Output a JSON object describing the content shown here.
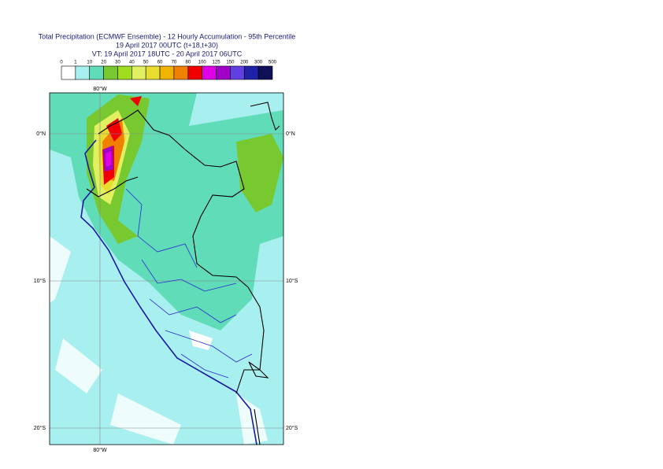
{
  "header": {
    "lines": [
      "Total Precipitation (ECMWF Ensemble) - 12 Hourly Accumulation - 95th Percentile",
      "19 April 2017 00UTC (t+18,t+30)",
      "VT: 19 April 2017 18UTC - 20 April 2017 06UTC"
    ]
  },
  "legend": {
    "labels": [
      "0",
      "1",
      "10",
      "20",
      "30",
      "40",
      "50",
      "60",
      "70",
      "80",
      "100",
      "125",
      "150",
      "200",
      "300",
      "500"
    ],
    "colors": [
      "#ffffff",
      "#a8f0f0",
      "#60dcb8",
      "#78c830",
      "#a0dc20",
      "#e0f060",
      "#e8dc30",
      "#f0b400",
      "#f08000",
      "#f00000",
      "#e000e8",
      "#a000c8",
      "#6040e0",
      "#2020a8",
      "#101058"
    ]
  },
  "map": {
    "longitudes": [
      "80°W"
    ],
    "latitudes": [
      "0°N",
      "10°S",
      "20°S"
    ]
  }
}
